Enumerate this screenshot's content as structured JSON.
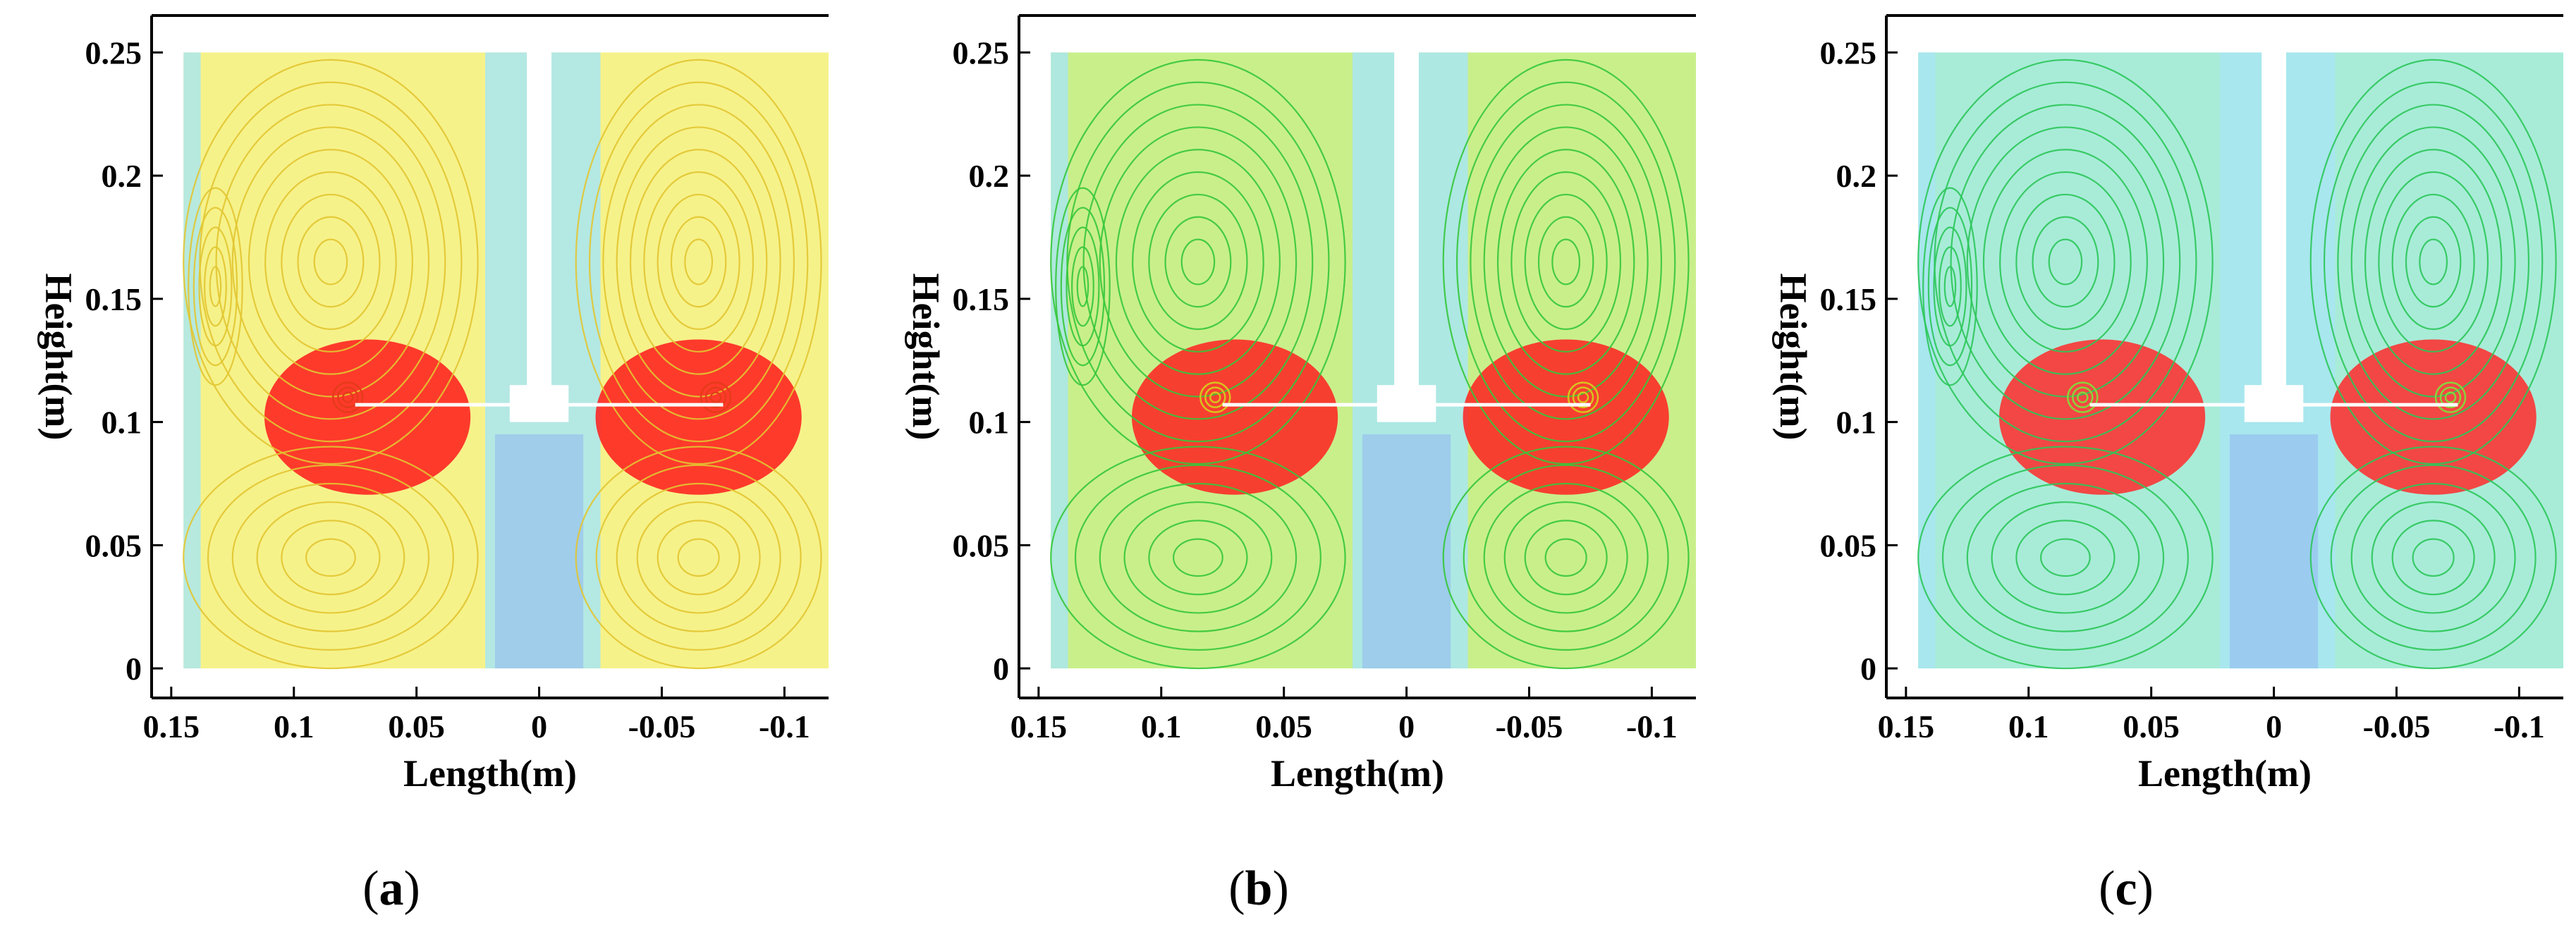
{
  "chart_data": [
    {
      "type": "streamline-contour",
      "panel_label": "a",
      "caption": {
        "open": "(",
        "letter": "a",
        "close": ")"
      },
      "xlabel": "Length(m)",
      "ylabel": "Height(m)",
      "xlim": [
        0.158,
        -0.118
      ],
      "ylim": [
        -0.012,
        0.265
      ],
      "xticks": [
        0.15,
        0.1,
        0.05,
        0,
        -0.05,
        -0.1
      ],
      "xtick_labels": [
        "0.15",
        "0.1",
        "0.05",
        "0",
        "-0.05",
        "-0.1"
      ],
      "yticks": [
        0,
        0.05,
        0.1,
        0.15,
        0.2,
        0.25
      ],
      "ytick_labels": [
        "0",
        "0.05",
        "0.1",
        "0.15",
        "0.2",
        "0.25"
      ],
      "fill_color": "#f6f28a",
      "hot_color": "#ff1a1a",
      "line_color": "#e2c531",
      "core_color": "#e53b1a",
      "impeller_jet_extent": 0.075
    },
    {
      "type": "streamline-contour",
      "panel_label": "b",
      "caption": {
        "open": "(",
        "letter": "b",
        "close": ")"
      },
      "xlabel": "Length(m)",
      "ylabel": "Height(m)",
      "xlim": [
        0.158,
        -0.118
      ],
      "ylim": [
        -0.012,
        0.265
      ],
      "xticks": [
        0.15,
        0.1,
        0.05,
        0,
        -0.05,
        -0.1
      ],
      "xtick_labels": [
        "0.15",
        "0.1",
        "0.05",
        "0",
        "-0.05",
        "-0.1"
      ],
      "yticks": [
        0,
        0.05,
        0.1,
        0.15,
        0.2,
        0.25
      ],
      "ytick_labels": [
        "0",
        "0.05",
        "0.1",
        "0.15",
        "0.2",
        "0.25"
      ],
      "fill_color": "#c9ef8b",
      "hot_color": "#ff2020",
      "line_color": "#36c63a",
      "core_color": "#d8c21e",
      "impeller_jet_extent": 0.075
    },
    {
      "type": "streamline-contour",
      "panel_label": "c",
      "caption": {
        "open": "(",
        "letter": "c",
        "close": ")"
      },
      "xlabel": "Length(m)",
      "ylabel": "Height(m)",
      "xlim": [
        0.158,
        -0.118
      ],
      "ylim": [
        -0.012,
        0.265
      ],
      "xticks": [
        0.15,
        0.1,
        0.05,
        0,
        -0.05,
        -0.1
      ],
      "xtick_labels": [
        "0.15",
        "0.1",
        "0.05",
        "0",
        "-0.05",
        "-0.1"
      ],
      "yticks": [
        0,
        0.05,
        0.1,
        0.15,
        0.2,
        0.25
      ],
      "ytick_labels": [
        "0",
        "0.05",
        "0.1",
        "0.15",
        "0.2",
        "0.25"
      ],
      "fill_color": "#a8ecd8",
      "hot_color": "#ff2a2a",
      "line_color": "#2cc65a",
      "core_color": "#8ad33a",
      "impeller_jet_extent": 0.075
    }
  ]
}
